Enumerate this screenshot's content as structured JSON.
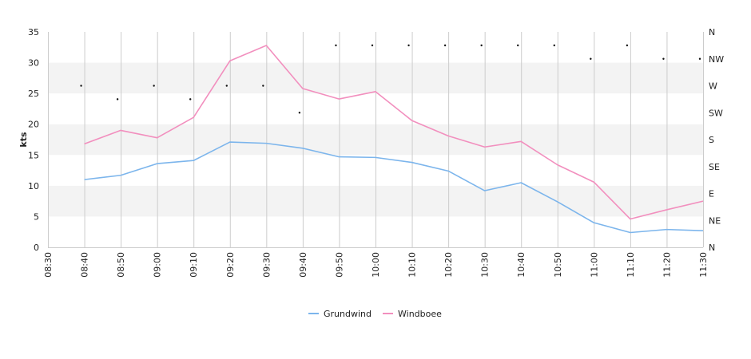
{
  "chart_data": {
    "type": "line",
    "ylabel": "kts",
    "ylim": [
      0,
      35
    ],
    "y_ticks": [
      "0",
      "5",
      "10",
      "15",
      "20",
      "25",
      "30",
      "35"
    ],
    "x_ticks": [
      "08:30",
      "08:40",
      "08:50",
      "09:00",
      "09:10",
      "09:20",
      "09:30",
      "09:40",
      "09:50",
      "10:00",
      "10:10",
      "10:20",
      "10:30",
      "10:40",
      "10:50",
      "11:00",
      "11:10",
      "11:20",
      "11:30"
    ],
    "x": [
      "08:40",
      "08:50",
      "09:00",
      "09:10",
      "09:20",
      "09:30",
      "09:40",
      "09:50",
      "10:00",
      "10:10",
      "10:20",
      "10:30",
      "10:40",
      "10:50",
      "11:00",
      "11:10",
      "11:20",
      "11:30"
    ],
    "series": [
      {
        "name": "Grundwind",
        "color": "#7cb5ec",
        "values": [
          11.0,
          11.7,
          13.6,
          14.1,
          17.1,
          16.9,
          16.1,
          14.7,
          14.6,
          13.8,
          12.4,
          9.2,
          10.5,
          7.4,
          4.0,
          2.4,
          2.9,
          2.7
        ]
      },
      {
        "name": "Windboee",
        "color": "#f28fbe",
        "values": [
          16.8,
          19.0,
          17.8,
          21.1,
          30.3,
          32.8,
          25.8,
          24.1,
          25.3,
          20.6,
          18.1,
          16.3,
          17.2,
          13.4,
          10.6,
          4.6,
          6.1,
          7.5
        ]
      }
    ],
    "direction_axis": {
      "labels": [
        "N",
        "NE",
        "E",
        "SE",
        "S",
        "SW",
        "W",
        "NW",
        "N"
      ],
      "values_deg": [
        270,
        247.5,
        270,
        247.5,
        270,
        270,
        225,
        337.5,
        337.5,
        337.5,
        337.5,
        337.5,
        337.5,
        337.5,
        315,
        337.5,
        315,
        315
      ]
    },
    "grid": true,
    "bands": true,
    "legend_position": "bottom-center"
  }
}
